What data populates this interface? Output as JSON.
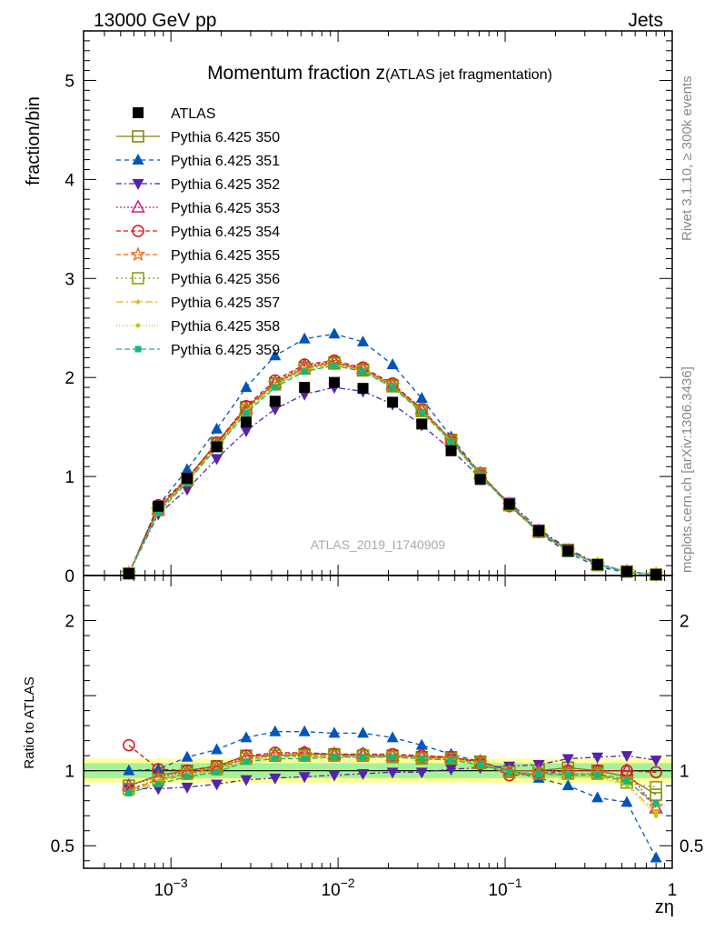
{
  "header": {
    "left": "13000 GeV pp",
    "right": "Jets"
  },
  "side_labels": {
    "rivet": "Rivet 3.1.10, ≥ 300k events",
    "mcplots": "mcplots.cern.ch [arXiv:1306.3436]"
  },
  "chart_data": [
    {
      "panel": "main",
      "type": "scatter",
      "title": "Momentum fraction z",
      "title_suffix": "(ATLAS jet fragmentation)",
      "ylabel": "fraction/bin",
      "watermark": "ATLAS_2019_I1740909",
      "xscale": "log",
      "xlim": [
        0.0003,
        1.0
      ],
      "ylim": [
        0,
        5.5
      ],
      "xticks": [
        0.001,
        0.01,
        0.1,
        1
      ],
      "xtick_labels": [
        "10^-3",
        "10^-2",
        "10^-1",
        "1"
      ],
      "yticks": [
        0,
        1,
        2,
        3,
        4,
        5
      ],
      "ytick_labels": [
        "0",
        "1",
        "2",
        "3",
        "4",
        "5"
      ],
      "legend_position": "top-left",
      "x": [
        0.00056,
        0.00084,
        0.00125,
        0.00188,
        0.00282,
        0.0042,
        0.0063,
        0.0095,
        0.0141,
        0.0212,
        0.0317,
        0.0475,
        0.071,
        0.106,
        0.159,
        0.238,
        0.357,
        0.535,
        0.8
      ],
      "series": [
        {
          "name": "ATLAS",
          "color": "#000000",
          "marker": "filled-square",
          "dash": "none",
          "values": [
            0.02,
            0.7,
            0.98,
            1.3,
            1.55,
            1.76,
            1.9,
            1.95,
            1.89,
            1.75,
            1.53,
            1.26,
            0.97,
            0.72,
            0.45,
            0.25,
            0.11,
            0.04,
            0.01
          ]
        },
        {
          "name": "Pythia 6.425 350",
          "color": "#808000",
          "marker": "open-square",
          "dash": "solid",
          "values": [
            0.02,
            0.68,
            0.98,
            1.34,
            1.7,
            1.94,
            2.1,
            2.15,
            2.08,
            1.92,
            1.67,
            1.37,
            1.03,
            0.72,
            0.45,
            0.26,
            0.11,
            0.04,
            0.01
          ]
        },
        {
          "name": "Pythia 6.425 351",
          "color": "#0055bb",
          "marker": "filled-triangle-up",
          "dash": "5,4",
          "values": [
            0.02,
            0.71,
            1.07,
            1.48,
            1.9,
            2.22,
            2.39,
            2.44,
            2.36,
            2.13,
            1.79,
            1.4,
            1.03,
            0.72,
            0.43,
            0.23,
            0.09,
            0.03,
            0.01
          ]
        },
        {
          "name": "Pythia 6.425 352",
          "color": "#5522aa",
          "marker": "filled-triangle-down",
          "dash": "6,3,2,3",
          "values": [
            0.02,
            0.62,
            0.87,
            1.18,
            1.46,
            1.68,
            1.83,
            1.9,
            1.86,
            1.73,
            1.52,
            1.27,
            0.99,
            0.74,
            0.47,
            0.27,
            0.12,
            0.04,
            0.01
          ]
        },
        {
          "name": "Pythia 6.425 353",
          "color": "#cc2277",
          "marker": "open-triangle-up",
          "dash": "2,2",
          "values": [
            0.02,
            0.67,
            0.97,
            1.33,
            1.69,
            1.95,
            2.12,
            2.16,
            2.09,
            1.93,
            1.68,
            1.37,
            1.03,
            0.72,
            0.45,
            0.25,
            0.11,
            0.04,
            0.01
          ]
        },
        {
          "name": "Pythia 6.425 354",
          "color": "#dd1111",
          "marker": "open-circle",
          "dash": "5,3",
          "values": [
            0.02,
            0.71,
            0.98,
            1.34,
            1.71,
            1.97,
            2.13,
            2.17,
            2.1,
            1.94,
            1.68,
            1.37,
            1.02,
            0.7,
            0.44,
            0.25,
            0.11,
            0.04,
            0.01
          ]
        },
        {
          "name": "Pythia 6.425 355",
          "color": "#ee6611",
          "marker": "open-star",
          "dash": "5,3",
          "values": [
            0.02,
            0.66,
            0.96,
            1.32,
            1.68,
            1.94,
            2.1,
            2.15,
            2.08,
            1.92,
            1.67,
            1.36,
            1.02,
            0.71,
            0.44,
            0.25,
            0.11,
            0.04,
            0.01
          ]
        },
        {
          "name": "Pythia 6.425 356",
          "color": "#889900",
          "marker": "open-square",
          "dash": "2,3",
          "values": [
            0.02,
            0.66,
            0.96,
            1.31,
            1.67,
            1.93,
            2.09,
            2.14,
            2.07,
            1.91,
            1.66,
            1.36,
            1.02,
            0.71,
            0.44,
            0.25,
            0.11,
            0.04,
            0.01
          ]
        },
        {
          "name": "Pythia 6.425 357",
          "color": "#ddbb00",
          "marker": "small-star",
          "dash": "8,3,2,3",
          "values": [
            0.02,
            0.65,
            0.95,
            1.3,
            1.66,
            1.92,
            2.08,
            2.13,
            2.07,
            1.91,
            1.66,
            1.36,
            1.02,
            0.71,
            0.44,
            0.25,
            0.11,
            0.04,
            0.01
          ]
        },
        {
          "name": "Pythia 6.425 358",
          "color": "#bbcc00",
          "marker": "small-dot",
          "dash": "1,2",
          "values": [
            0.02,
            0.64,
            0.94,
            1.29,
            1.65,
            1.91,
            2.07,
            2.12,
            2.06,
            1.9,
            1.65,
            1.35,
            1.01,
            0.7,
            0.44,
            0.25,
            0.11,
            0.04,
            0.01
          ]
        },
        {
          "name": "Pythia 6.425 359",
          "color": "#11bb77",
          "marker": "filled-small-square",
          "dash": "6,3",
          "values": [
            0.02,
            0.64,
            0.94,
            1.29,
            1.64,
            1.9,
            2.06,
            2.12,
            2.06,
            1.9,
            1.65,
            1.35,
            1.01,
            0.71,
            0.44,
            0.25,
            0.11,
            0.04,
            0.01
          ]
        }
      ]
    },
    {
      "panel": "ratio",
      "type": "line",
      "ylabel": "Ratio to ATLAS",
      "xlabel": "zη",
      "xscale": "log",
      "xlim": [
        0.0003,
        1.0
      ],
      "ylim": [
        0.35,
        2.3
      ],
      "yticks": [
        0.5,
        1,
        2
      ],
      "ytick_labels": [
        "0.5",
        "1",
        "2"
      ],
      "band_inner": [
        0.95,
        1.05
      ],
      "band_outer": [
        0.92,
        1.08
      ],
      "x": [
        0.00056,
        0.00084,
        0.00125,
        0.00188,
        0.00282,
        0.0042,
        0.0063,
        0.0095,
        0.0141,
        0.0212,
        0.0317,
        0.0475,
        0.071,
        0.106,
        0.159,
        0.238,
        0.357,
        0.535,
        0.8
      ],
      "series": [
        {
          "name": "Pythia 6.425 350",
          "values": [
            0.9,
            0.97,
            1.0,
            1.03,
            1.1,
            1.1,
            1.11,
            1.11,
            1.1,
            1.1,
            1.09,
            1.09,
            1.06,
            1.0,
            1.0,
            1.02,
            1.0,
            0.96,
            0.84
          ]
        },
        {
          "name": "Pythia 6.425 351",
          "values": [
            1.0,
            1.01,
            1.09,
            1.14,
            1.22,
            1.26,
            1.26,
            1.25,
            1.25,
            1.22,
            1.17,
            1.11,
            1.06,
            1.0,
            0.95,
            0.9,
            0.82,
            0.79,
            0.42
          ]
        },
        {
          "name": "Pythia 6.425 352",
          "values": [
            0.88,
            0.88,
            0.89,
            0.91,
            0.94,
            0.95,
            0.96,
            0.97,
            0.98,
            0.99,
            0.99,
            1.01,
            1.02,
            1.03,
            1.04,
            1.08,
            1.09,
            1.1,
            1.07
          ]
        },
        {
          "name": "Pythia 6.425 353",
          "values": [
            0.9,
            0.96,
            0.99,
            1.02,
            1.09,
            1.11,
            1.12,
            1.11,
            1.11,
            1.1,
            1.1,
            1.09,
            1.06,
            1.0,
            1.0,
            1.0,
            1.0,
            1.0,
            0.75
          ]
        },
        {
          "name": "Pythia 6.425 354",
          "values": [
            1.17,
            1.01,
            1.0,
            1.03,
            1.1,
            1.12,
            1.12,
            1.11,
            1.11,
            1.11,
            1.1,
            1.09,
            1.05,
            0.97,
            0.98,
            1.0,
            1.0,
            1.0,
            0.99
          ]
        },
        {
          "name": "Pythia 6.425 355",
          "values": [
            0.87,
            0.94,
            0.98,
            1.02,
            1.08,
            1.1,
            1.1,
            1.1,
            1.1,
            1.1,
            1.09,
            1.08,
            1.05,
            0.99,
            0.98,
            0.98,
            0.98,
            0.94,
            0.76
          ]
        },
        {
          "name": "Pythia 6.425 356",
          "values": [
            0.88,
            0.94,
            0.98,
            1.01,
            1.08,
            1.1,
            1.1,
            1.1,
            1.1,
            1.09,
            1.08,
            1.08,
            1.05,
            0.99,
            0.98,
            0.98,
            0.98,
            0.92,
            0.89
          ]
        },
        {
          "name": "Pythia 6.425 357",
          "values": [
            0.86,
            0.93,
            0.97,
            1.0,
            1.07,
            1.09,
            1.09,
            1.09,
            1.09,
            1.09,
            1.08,
            1.08,
            1.05,
            0.99,
            0.98,
            0.97,
            0.97,
            0.91,
            0.72
          ]
        },
        {
          "name": "Pythia 6.425 358",
          "values": [
            0.85,
            0.92,
            0.96,
            0.99,
            1.06,
            1.09,
            1.09,
            1.09,
            1.09,
            1.09,
            1.08,
            1.07,
            1.04,
            0.98,
            0.97,
            0.96,
            0.96,
            0.9,
            0.7
          ]
        },
        {
          "name": "Pythia 6.425 359",
          "values": [
            0.85,
            0.91,
            0.96,
            0.99,
            1.06,
            1.08,
            1.08,
            1.09,
            1.09,
            1.09,
            1.08,
            1.07,
            1.04,
            0.99,
            0.98,
            0.97,
            0.97,
            0.93,
            0.78
          ]
        }
      ]
    }
  ]
}
